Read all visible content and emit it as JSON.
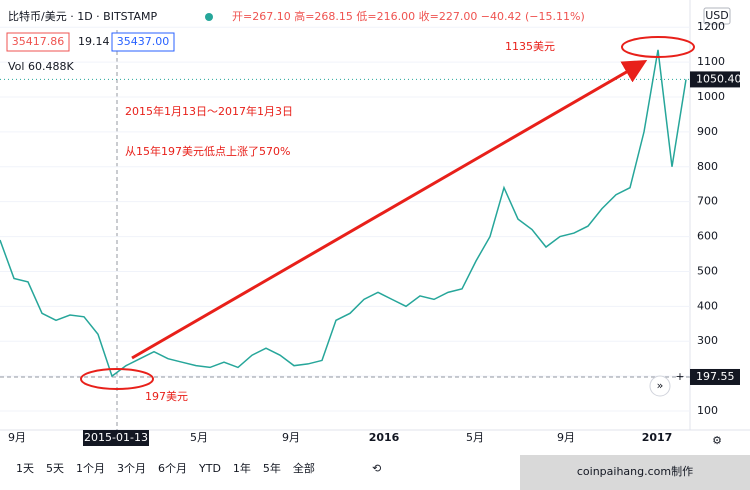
{
  "header": {
    "symbol": "比特币/美元 · 1D · BITSTAMP",
    "ohlc": "开=267.10 高=268.15 低=216.00 收=227.00 −40.42 (−15.11%)",
    "bid": "35417.86",
    "spread": "19.14",
    "ask": "35437.00",
    "volume": "Vol  60.488K",
    "currency": "USD"
  },
  "chart_data": {
    "type": "line",
    "color": "#26a69a",
    "values": [
      590,
      480,
      470,
      380,
      360,
      375,
      370,
      320,
      200,
      230,
      250,
      270,
      250,
      240,
      230,
      225,
      240,
      225,
      260,
      280,
      260,
      230,
      235,
      245,
      360,
      380,
      420,
      440,
      420,
      400,
      430,
      420,
      440,
      450,
      530,
      600,
      740,
      650,
      620,
      570,
      600,
      610,
      630,
      680,
      720,
      740,
      900,
      1135,
      800,
      1050
    ],
    "ylim": [
      45.6,
      1278
    ],
    "yticks": [
      100,
      200,
      300,
      400,
      500,
      600,
      700,
      800,
      900,
      1000,
      1100,
      1200
    ],
    "grid": true,
    "x_labels": [
      "9月",
      "2015-01-13",
      "5月",
      "9月",
      "2016",
      "5月",
      "9月",
      "2017"
    ],
    "last_price": {
      "value": 1050.4,
      "label": "1050.40"
    },
    "crosshair_price": 197.55,
    "annotations": [
      "2015年1月13日～2017年1月3日",
      "从15年197美元低点上涨了570%",
      "1135美元",
      "197美元"
    ]
  },
  "toolbar": [
    "1天",
    "5天",
    "1个月",
    "3个月",
    "6个月",
    "YTD",
    "1年",
    "5年",
    "全部"
  ],
  "watermark": "coinpaihang.com制作"
}
